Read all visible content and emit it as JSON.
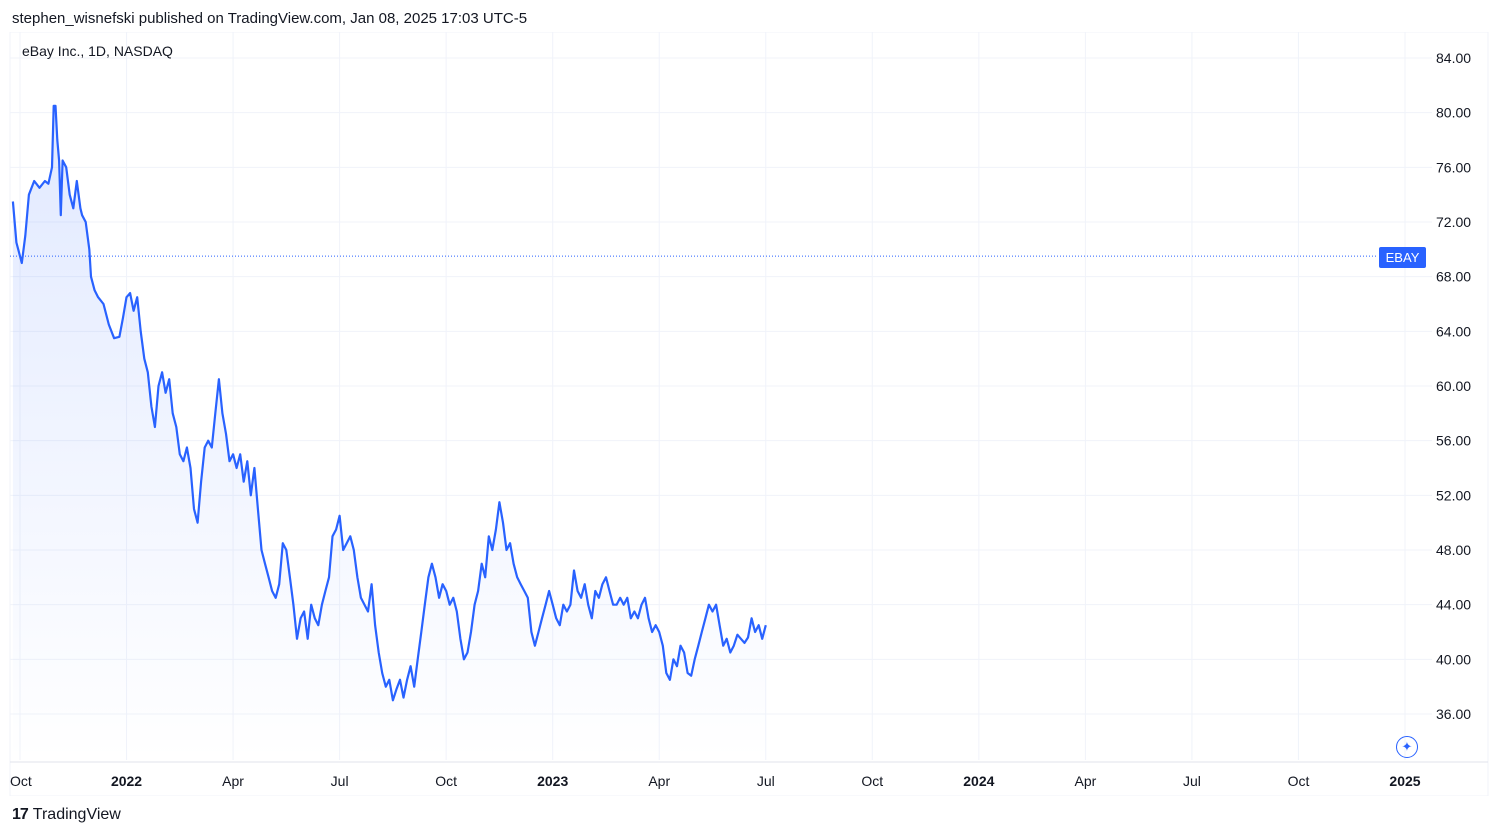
{
  "header": {
    "published": "stephen_wisnefski published on TradingView.com, Jan 08, 2025 17:03 UTC-5"
  },
  "footer": {
    "brand": "TradingView",
    "brand_mark": "17"
  },
  "sparkle_glyph": "✦",
  "chart_data": {
    "type": "area",
    "title": "eBay Inc., 1D, NASDAQ",
    "ticker_label": "EBAY",
    "last_value": 69.5,
    "ylim": [
      33,
      86
    ],
    "y_ticks": [
      "36.00",
      "40.00",
      "44.00",
      "48.00",
      "52.00",
      "56.00",
      "60.00",
      "64.00",
      "68.00",
      "72.00",
      "76.00",
      "80.00",
      "84.00"
    ],
    "x_ticks": [
      {
        "label": "Oct",
        "t": 0.0,
        "bold": false
      },
      {
        "label": "2022",
        "t": 3.0,
        "bold": true
      },
      {
        "label": "Apr",
        "t": 6.0,
        "bold": false
      },
      {
        "label": "Jul",
        "t": 9.0,
        "bold": false
      },
      {
        "label": "Oct",
        "t": 12.0,
        "bold": false
      },
      {
        "label": "2023",
        "t": 15.0,
        "bold": true
      },
      {
        "label": "Apr",
        "t": 18.0,
        "bold": false
      },
      {
        "label": "Jul",
        "t": 21.0,
        "bold": false
      },
      {
        "label": "Oct",
        "t": 24.0,
        "bold": false
      },
      {
        "label": "2024",
        "t": 27.0,
        "bold": true
      },
      {
        "label": "Apr",
        "t": 30.0,
        "bold": false
      },
      {
        "label": "Jul",
        "t": 33.0,
        "bold": false
      },
      {
        "label": "Oct",
        "t": 36.0,
        "bold": false
      },
      {
        "label": "2025",
        "t": 39.0,
        "bold": true
      }
    ],
    "series": [
      {
        "values": [
          [
            -0.2,
            73.5
          ],
          [
            -0.1,
            70.5
          ],
          [
            0.05,
            69
          ],
          [
            0.15,
            71
          ],
          [
            0.25,
            74
          ],
          [
            0.4,
            75
          ],
          [
            0.55,
            74.5
          ],
          [
            0.7,
            75
          ],
          [
            0.8,
            74.8
          ],
          [
            0.9,
            76
          ],
          [
            0.95,
            80.5
          ],
          [
            1.0,
            80.5
          ],
          [
            1.05,
            78
          ],
          [
            1.1,
            76.5
          ],
          [
            1.15,
            72.5
          ],
          [
            1.2,
            76.5
          ],
          [
            1.3,
            76
          ],
          [
            1.4,
            74
          ],
          [
            1.5,
            73
          ],
          [
            1.6,
            75
          ],
          [
            1.7,
            73
          ],
          [
            1.75,
            72.5
          ],
          [
            1.85,
            72
          ],
          [
            1.95,
            70
          ],
          [
            2.0,
            68
          ],
          [
            2.1,
            67
          ],
          [
            2.2,
            66.5
          ],
          [
            2.35,
            66
          ],
          [
            2.5,
            64.5
          ],
          [
            2.65,
            63.5
          ],
          [
            2.8,
            63.6
          ],
          [
            2.9,
            65
          ],
          [
            3.0,
            66.5
          ],
          [
            3.1,
            66.8
          ],
          [
            3.2,
            65.5
          ],
          [
            3.3,
            66.5
          ],
          [
            3.4,
            64
          ],
          [
            3.5,
            62
          ],
          [
            3.6,
            61
          ],
          [
            3.7,
            58.5
          ],
          [
            3.8,
            57
          ],
          [
            3.9,
            60
          ],
          [
            4.0,
            61
          ],
          [
            4.1,
            59.5
          ],
          [
            4.2,
            60.5
          ],
          [
            4.3,
            58
          ],
          [
            4.4,
            57
          ],
          [
            4.5,
            55
          ],
          [
            4.6,
            54.5
          ],
          [
            4.7,
            55.5
          ],
          [
            4.8,
            54
          ],
          [
            4.9,
            51
          ],
          [
            5.0,
            50
          ],
          [
            5.1,
            53
          ],
          [
            5.2,
            55.5
          ],
          [
            5.3,
            56
          ],
          [
            5.4,
            55.5
          ],
          [
            5.5,
            58
          ],
          [
            5.6,
            60.5
          ],
          [
            5.7,
            58
          ],
          [
            5.8,
            56.5
          ],
          [
            5.9,
            54.5
          ],
          [
            6.0,
            55
          ],
          [
            6.1,
            54
          ],
          [
            6.2,
            55
          ],
          [
            6.3,
            53
          ],
          [
            6.4,
            54.5
          ],
          [
            6.5,
            52
          ],
          [
            6.6,
            54
          ],
          [
            6.7,
            51
          ],
          [
            6.8,
            48
          ],
          [
            6.9,
            47
          ],
          [
            7.0,
            46
          ],
          [
            7.1,
            45
          ],
          [
            7.2,
            44.5
          ],
          [
            7.3,
            45.5
          ],
          [
            7.4,
            48.5
          ],
          [
            7.5,
            48
          ],
          [
            7.6,
            46
          ],
          [
            7.7,
            44
          ],
          [
            7.8,
            41.5
          ],
          [
            7.9,
            43
          ],
          [
            8.0,
            43.5
          ],
          [
            8.1,
            41.5
          ],
          [
            8.2,
            44
          ],
          [
            8.3,
            43
          ],
          [
            8.4,
            42.5
          ],
          [
            8.5,
            44
          ],
          [
            8.6,
            45
          ],
          [
            8.7,
            46
          ],
          [
            8.8,
            49
          ],
          [
            8.9,
            49.5
          ],
          [
            9.0,
            50.5
          ],
          [
            9.1,
            48
          ],
          [
            9.2,
            48.5
          ],
          [
            9.3,
            49
          ],
          [
            9.4,
            48
          ],
          [
            9.5,
            46
          ],
          [
            9.6,
            44.5
          ],
          [
            9.7,
            44
          ],
          [
            9.8,
            43.5
          ],
          [
            9.9,
            45.5
          ],
          [
            10.0,
            42.5
          ],
          [
            10.1,
            40.5
          ],
          [
            10.2,
            39
          ],
          [
            10.3,
            38
          ],
          [
            10.4,
            38.5
          ],
          [
            10.5,
            37
          ],
          [
            10.6,
            37.8
          ],
          [
            10.7,
            38.5
          ],
          [
            10.8,
            37.2
          ],
          [
            10.9,
            38.5
          ],
          [
            11.0,
            39.5
          ],
          [
            11.1,
            38
          ],
          [
            11.2,
            40
          ],
          [
            11.3,
            42
          ],
          [
            11.4,
            44
          ],
          [
            11.5,
            46
          ],
          [
            11.6,
            47
          ],
          [
            11.7,
            46
          ],
          [
            11.8,
            44.5
          ],
          [
            11.9,
            45.5
          ],
          [
            12.0,
            45
          ],
          [
            12.1,
            44
          ],
          [
            12.2,
            44.5
          ],
          [
            12.3,
            43.5
          ],
          [
            12.4,
            41.5
          ],
          [
            12.5,
            40
          ],
          [
            12.6,
            40.5
          ],
          [
            12.7,
            42
          ],
          [
            12.8,
            44
          ],
          [
            12.9,
            45
          ],
          [
            13.0,
            47
          ],
          [
            13.1,
            46
          ],
          [
            13.2,
            49
          ],
          [
            13.3,
            48
          ],
          [
            13.4,
            49.5
          ],
          [
            13.5,
            51.5
          ],
          [
            13.6,
            50
          ],
          [
            13.7,
            48
          ],
          [
            13.8,
            48.5
          ],
          [
            13.9,
            47
          ],
          [
            14.0,
            46
          ],
          [
            14.1,
            45.5
          ],
          [
            14.2,
            45
          ],
          [
            14.3,
            44.5
          ],
          [
            14.4,
            42
          ],
          [
            14.5,
            41
          ],
          [
            14.6,
            42
          ],
          [
            14.7,
            43
          ],
          [
            14.8,
            44
          ],
          [
            14.9,
            45
          ],
          [
            15.0,
            44
          ],
          [
            15.1,
            43
          ],
          [
            15.2,
            42.5
          ],
          [
            15.3,
            44
          ],
          [
            15.4,
            43.5
          ],
          [
            15.5,
            44
          ],
          [
            15.6,
            46.5
          ],
          [
            15.7,
            45
          ],
          [
            15.8,
            44.5
          ],
          [
            15.9,
            45.5
          ],
          [
            16.0,
            44
          ],
          [
            16.1,
            43
          ],
          [
            16.2,
            45
          ],
          [
            16.3,
            44.5
          ],
          [
            16.4,
            45.5
          ],
          [
            16.5,
            46
          ],
          [
            16.6,
            45
          ],
          [
            16.7,
            44
          ],
          [
            16.8,
            44
          ],
          [
            16.9,
            44.5
          ],
          [
            17.0,
            44
          ],
          [
            17.1,
            44.5
          ],
          [
            17.2,
            43
          ],
          [
            17.3,
            43.5
          ],
          [
            17.4,
            43
          ],
          [
            17.5,
            44
          ],
          [
            17.6,
            44.5
          ],
          [
            17.7,
            43
          ],
          [
            17.8,
            42
          ],
          [
            17.9,
            42.5
          ],
          [
            18.0,
            42
          ],
          [
            18.1,
            41
          ],
          [
            18.2,
            39
          ],
          [
            18.3,
            38.5
          ],
          [
            18.4,
            40
          ],
          [
            18.5,
            39.5
          ],
          [
            18.6,
            41
          ],
          [
            18.7,
            40.5
          ],
          [
            18.8,
            39
          ],
          [
            18.9,
            38.8
          ],
          [
            19.0,
            40
          ],
          [
            19.1,
            41
          ],
          [
            19.2,
            42
          ],
          [
            19.3,
            43
          ],
          [
            19.4,
            44
          ],
          [
            19.5,
            43.5
          ],
          [
            19.6,
            44
          ],
          [
            19.7,
            42.5
          ],
          [
            19.8,
            41
          ],
          [
            19.9,
            41.5
          ],
          [
            20.0,
            40.5
          ],
          [
            20.1,
            41
          ],
          [
            20.2,
            41.8
          ],
          [
            20.3,
            41.5
          ],
          [
            20.4,
            41.2
          ],
          [
            20.5,
            41.6
          ],
          [
            20.6,
            43
          ],
          [
            20.7,
            42
          ],
          [
            20.8,
            42.5
          ],
          [
            20.9,
            41.5
          ],
          [
            21.0,
            42.5
          ]
        ]
      }
    ]
  }
}
